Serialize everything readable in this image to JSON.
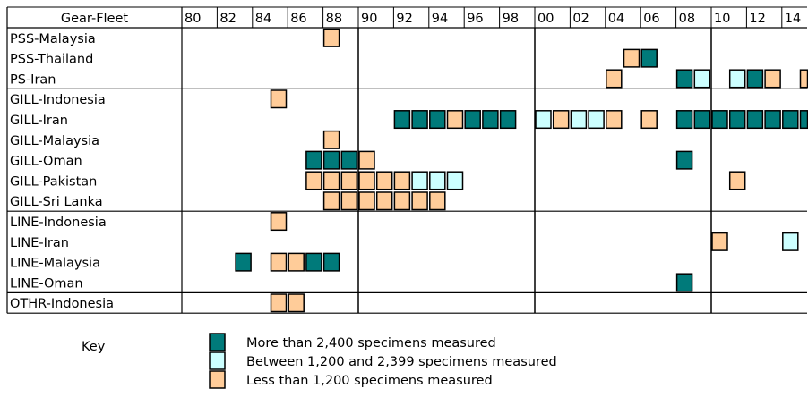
{
  "chart_data": {
    "type": "heatmap",
    "header_label": "Gear-Fleet",
    "year_labels": [
      "80",
      "82",
      "84",
      "86",
      "88",
      "90",
      "92",
      "94",
      "96",
      "98",
      "00",
      "02",
      "04",
      "06",
      "08",
      "10",
      "12",
      "14"
    ],
    "groups": [
      [
        "PSS-Malaysia",
        "PSS-Thailand",
        "PS-Iran"
      ],
      [
        "GILL-Indonesia",
        "GILL-Iran",
        "GILL-Malaysia",
        "GILL-Oman",
        "GILL-Pakistan",
        "GILL-Sri Lanka"
      ],
      [
        "LINE-Indonesia",
        "LINE-Iran",
        "LINE-Malaysia",
        "LINE-Oman"
      ],
      [
        "OTHR-Indonesia"
      ]
    ],
    "categories": {
      "high": {
        "label": "More than 2,400 specimens measured",
        "color": "#007a7a"
      },
      "mid": {
        "label": "Between 1,200 and 2,399 specimens measured",
        "color": "#ccffff"
      },
      "low": {
        "label": "Less than 1,200 specimens measured",
        "color": "#ffcc99"
      }
    },
    "rows": [
      {
        "fleet": "PSS-Malaysia",
        "cells": [
          [
            1988,
            "low"
          ]
        ]
      },
      {
        "fleet": "PSS-Thailand",
        "cells": [
          [
            2005,
            "low"
          ],
          [
            2006,
            "high"
          ]
        ]
      },
      {
        "fleet": "PS-Iran",
        "cells": [
          [
            2004,
            "low"
          ],
          [
            2008,
            "high"
          ],
          [
            2009,
            "mid"
          ],
          [
            2011,
            "mid"
          ],
          [
            2012,
            "high"
          ],
          [
            2013,
            "low"
          ],
          [
            2015,
            "low"
          ]
        ]
      },
      {
        "fleet": "GILL-Indonesia",
        "cells": [
          [
            1985,
            "low"
          ]
        ]
      },
      {
        "fleet": "GILL-Iran",
        "cells": [
          [
            1992,
            "high"
          ],
          [
            1993,
            "high"
          ],
          [
            1994,
            "high"
          ],
          [
            1995,
            "low"
          ],
          [
            1996,
            "high"
          ],
          [
            1997,
            "high"
          ],
          [
            1998,
            "high"
          ],
          [
            2000,
            "mid"
          ],
          [
            2001,
            "low"
          ],
          [
            2002,
            "mid"
          ],
          [
            2003,
            "mid"
          ],
          [
            2004,
            "low"
          ],
          [
            2006,
            "low"
          ],
          [
            2008,
            "high"
          ],
          [
            2009,
            "high"
          ],
          [
            2010,
            "high"
          ],
          [
            2011,
            "high"
          ],
          [
            2012,
            "high"
          ],
          [
            2013,
            "high"
          ],
          [
            2014,
            "high"
          ],
          [
            2015,
            "high"
          ]
        ]
      },
      {
        "fleet": "GILL-Malaysia",
        "cells": [
          [
            1988,
            "low"
          ]
        ]
      },
      {
        "fleet": "GILL-Oman",
        "cells": [
          [
            1987,
            "high"
          ],
          [
            1988,
            "high"
          ],
          [
            1989,
            "high"
          ],
          [
            1990,
            "low"
          ],
          [
            2008,
            "high"
          ]
        ]
      },
      {
        "fleet": "GILL-Pakistan",
        "cells": [
          [
            1987,
            "low"
          ],
          [
            1988,
            "low"
          ],
          [
            1989,
            "low"
          ],
          [
            1990,
            "low"
          ],
          [
            1991,
            "low"
          ],
          [
            1992,
            "low"
          ],
          [
            1993,
            "mid"
          ],
          [
            1994,
            "mid"
          ],
          [
            1995,
            "mid"
          ],
          [
            2011,
            "low"
          ]
        ]
      },
      {
        "fleet": "GILL-Sri Lanka",
        "cells": [
          [
            1988,
            "low"
          ],
          [
            1989,
            "low"
          ],
          [
            1990,
            "low"
          ],
          [
            1991,
            "low"
          ],
          [
            1992,
            "low"
          ],
          [
            1993,
            "low"
          ],
          [
            1994,
            "low"
          ]
        ]
      },
      {
        "fleet": "LINE-Indonesia",
        "cells": [
          [
            1985,
            "low"
          ]
        ]
      },
      {
        "fleet": "LINE-Iran",
        "cells": [
          [
            2010,
            "low"
          ],
          [
            2014,
            "mid"
          ]
        ]
      },
      {
        "fleet": "LINE-Malaysia",
        "cells": [
          [
            1983,
            "high"
          ],
          [
            1985,
            "low"
          ],
          [
            1986,
            "low"
          ],
          [
            1987,
            "high"
          ],
          [
            1988,
            "high"
          ]
        ]
      },
      {
        "fleet": "LINE-Oman",
        "cells": [
          [
            2008,
            "high"
          ]
        ]
      },
      {
        "fleet": "OTHR-Indonesia",
        "cells": [
          [
            1985,
            "low"
          ],
          [
            1986,
            "low"
          ]
        ]
      }
    ],
    "year_start": 1980,
    "year_end": 2015,
    "decade_lines": [
      1990,
      2000,
      2010
    ]
  },
  "key": {
    "title": "Key",
    "entries": [
      "high",
      "mid",
      "low"
    ]
  }
}
